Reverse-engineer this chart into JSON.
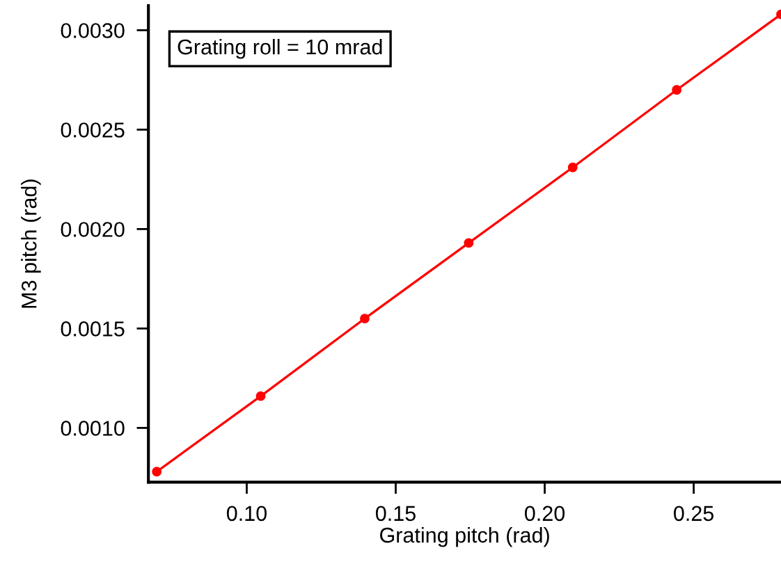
{
  "chart_data": {
    "type": "line",
    "xlabel": "Grating pitch (rad)",
    "ylabel": "M3 pitch (rad)",
    "annotations": [
      "Grating roll = 10 mrad"
    ],
    "x": [
      0.0698,
      0.1047,
      0.1396,
      0.1745,
      0.2094,
      0.2443,
      0.2793
    ],
    "series": [
      {
        "color": "#ff0000",
        "values": [
          0.00078,
          0.00116,
          0.00155,
          0.00193,
          0.00231,
          0.0027,
          0.00308
        ]
      }
    ],
    "xlim": [
      0.067,
      0.2793
    ],
    "ylim": [
      0.000727,
      0.003124
    ],
    "xticks": [
      {
        "value": 0.1,
        "label": "0.10"
      },
      {
        "value": 0.15,
        "label": "0.15"
      },
      {
        "value": 0.2,
        "label": "0.20"
      },
      {
        "value": 0.25,
        "label": "0.25"
      }
    ],
    "yticks": [
      {
        "value": 0.001,
        "label": "0.0010"
      },
      {
        "value": 0.0015,
        "label": "0.0015"
      },
      {
        "value": 0.002,
        "label": "0.0020"
      },
      {
        "value": 0.0025,
        "label": "0.0025"
      },
      {
        "value": 0.003,
        "label": "0.0030"
      }
    ],
    "marker": "circle",
    "line_style": "solid",
    "grid": false
  }
}
